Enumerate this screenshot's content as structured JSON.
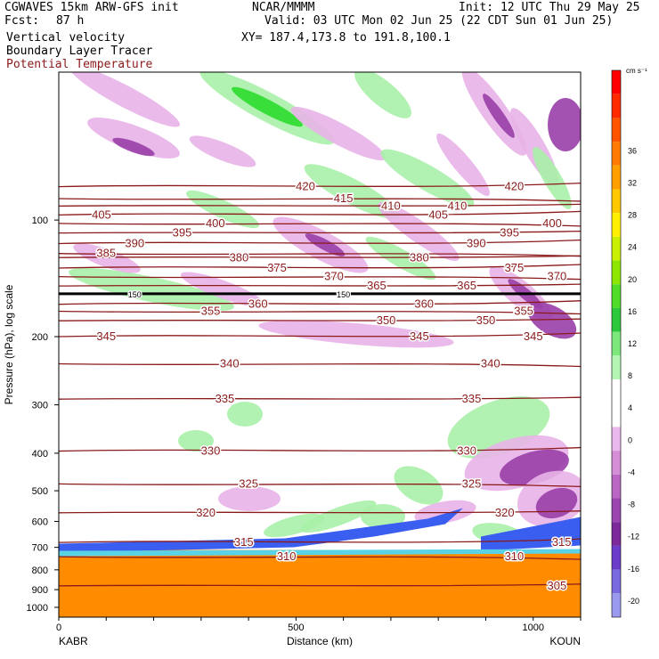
{
  "header": {
    "model": "CGWAVES 15km ARW-GFS init",
    "fcst_label": "Fcst:",
    "fcst_value": "87 h",
    "field1": "Vertical velocity",
    "field2": "Boundary Layer Tracer",
    "field3": "Potential Temperature",
    "center": "NCAR/MMMM",
    "init": "Init: 12 UTC Thu 29 May 25",
    "valid": "Valid: 03 UTC Mon 02 Jun 25 (22 CDT Sun 01 Jun 25)",
    "xy": "XY= 187.4,173.8 to 191.8,100.1"
  },
  "colors": {
    "theta_contour": "#8b1a1a",
    "tracer": "#ff8c00",
    "upward_light": "#a8f0a8",
    "upward_dark": "#2edc2e",
    "downward_light": "#e8b4e8",
    "downward_dark": "#9a3fa8",
    "tropopause": "#000000"
  },
  "chart_data": {
    "type": "heatmap",
    "xlabel": "Distance (km)",
    "ylabel": "Pressure (hPa), log scale",
    "x_ticks": [
      "0",
      "500",
      "1000"
    ],
    "x_tick_values": [
      0,
      500,
      1000
    ],
    "xlim": [
      0,
      1100
    ],
    "endpoint_left": "KABR",
    "endpoint_right": "KOUN",
    "y_scale": "log",
    "y_ticks": [
      "100",
      "200",
      "300",
      "400",
      "500",
      "600",
      "700",
      "800",
      "900",
      "1000"
    ],
    "y_tick_values": [
      100,
      200,
      300,
      400,
      500,
      600,
      700,
      800,
      900,
      1000
    ],
    "colorbar": {
      "unit": "cm s⁻¹",
      "ticks": [
        "36",
        "32",
        "28",
        "24",
        "20",
        "16",
        "12",
        "8",
        "4",
        "0",
        "-4",
        "-8",
        "-12",
        "-16",
        "-20"
      ],
      "tick_values": [
        36,
        32,
        28,
        24,
        20,
        16,
        12,
        8,
        4,
        0,
        -4,
        -8,
        -12,
        -16,
        -20
      ],
      "colors": [
        "#ff0000",
        "#ff2a00",
        "#ff5500",
        "#ff7a00",
        "#ffa000",
        "#ffc800",
        "#fff000",
        "#c8f000",
        "#8ce600",
        "#50dc28",
        "#2ec83c",
        "#7ce87c",
        "#b4f5b4",
        "#ffffff",
        "#ffffff",
        "#eab8ea",
        "#d68ed6",
        "#bb66c4",
        "#9c44b0",
        "#7c2a9a",
        "#6a3cc8",
        "#7a6ae0",
        "#9a9aee"
      ]
    },
    "theta_contours": [
      {
        "label": "420",
        "pressure": 82,
        "labels_at_km": [
          520,
          960
        ]
      },
      {
        "label": "415",
        "pressure": 88,
        "labels_at_km": [
          600
        ]
      },
      {
        "label": "410",
        "pressure": 92,
        "labels_at_km": [
          700,
          840
        ]
      },
      {
        "label": "405",
        "pressure": 97,
        "labels_at_km": [
          90,
          800
        ]
      },
      {
        "label": "400",
        "pressure": 102,
        "labels_at_km": [
          330,
          1040
        ]
      },
      {
        "label": "395",
        "pressure": 108,
        "labels_at_km": [
          260,
          950
        ]
      },
      {
        "label": "390",
        "pressure": 115,
        "labels_at_km": [
          160,
          880
        ]
      },
      {
        "label": "385",
        "pressure": 122,
        "labels_at_km": [
          100
        ]
      },
      {
        "label": "380",
        "pressure": 125,
        "labels_at_km": [
          380,
          760
        ]
      },
      {
        "label": "375",
        "pressure": 133,
        "labels_at_km": [
          460,
          960
        ]
      },
      {
        "label": "370",
        "pressure": 140,
        "labels_at_km": [
          580,
          1050
        ]
      },
      {
        "label": "365",
        "pressure": 148,
        "labels_at_km": [
          670,
          860
        ]
      },
      {
        "label": "360",
        "pressure": 165,
        "labels_at_km": [
          420,
          770
        ]
      },
      {
        "label": "355",
        "pressure": 172,
        "labels_at_km": [
          320,
          980
        ]
      },
      {
        "label": "350",
        "pressure": 182,
        "labels_at_km": [
          690,
          900
        ]
      },
      {
        "label": "345",
        "pressure": 200,
        "labels_at_km": [
          100,
          760,
          1000
        ]
      },
      {
        "label": "340",
        "pressure": 235,
        "labels_at_km": [
          360,
          910
        ]
      },
      {
        "label": "335",
        "pressure": 290,
        "labels_at_km": [
          350,
          870
        ]
      },
      {
        "label": "330",
        "pressure": 395,
        "labels_at_km": [
          320,
          860
        ]
      },
      {
        "label": "325",
        "pressure": 480,
        "labels_at_km": [
          400,
          870
        ]
      },
      {
        "label": "320",
        "pressure": 570,
        "labels_at_km": [
          310,
          940
        ]
      },
      {
        "label": "315",
        "pressure": 680,
        "labels_at_km": [
          390,
          1060
        ]
      },
      {
        "label": "310",
        "pressure": 740,
        "labels_at_km": [
          480,
          960
        ]
      },
      {
        "label": "305",
        "pressure": 880,
        "labels_at_km": [
          1050
        ]
      }
    ],
    "tropopause_pressure": 155,
    "tropopause_labels": [
      {
        "label": "150",
        "at_km": [
          160,
          600
        ]
      }
    ],
    "boundary_layer_top_pressure": 730
  }
}
